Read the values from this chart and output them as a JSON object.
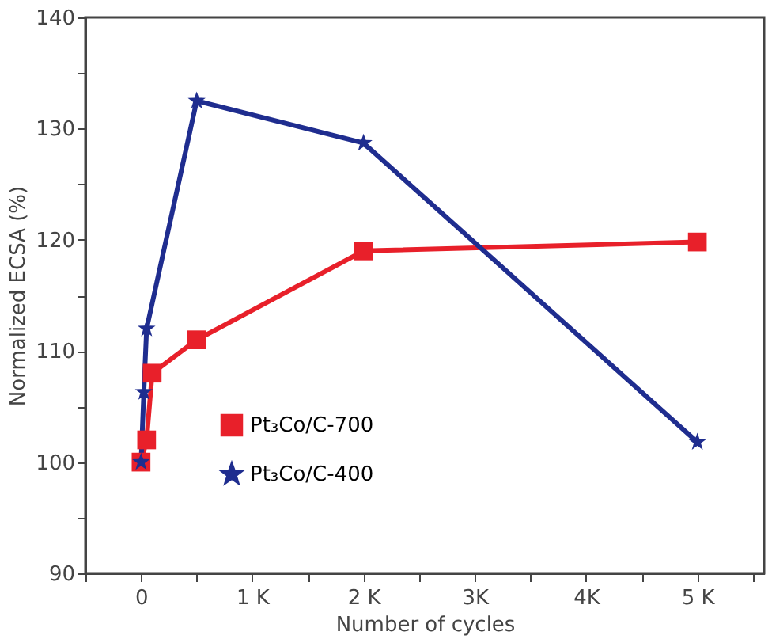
{
  "chart_data": {
    "type": "line",
    "xlabel": "Number of cycles",
    "ylabel": "Normalized ECSA (%)",
    "xlim": [
      -500,
      5600
    ],
    "ylim": [
      90,
      140
    ],
    "xticks": [
      {
        "value": -500,
        "label": null
      },
      {
        "value": 0,
        "label": "0"
      },
      {
        "value": 500,
        "label": null
      },
      {
        "value": 1000,
        "label": "1 K"
      },
      {
        "value": 1500,
        "label": null
      },
      {
        "value": 2000,
        "label": "2 K"
      },
      {
        "value": 2500,
        "label": null
      },
      {
        "value": 3000,
        "label": "3K"
      },
      {
        "value": 3500,
        "label": null
      },
      {
        "value": 4000,
        "label": "4K"
      },
      {
        "value": 4500,
        "label": null
      },
      {
        "value": 5000,
        "label": "5 K"
      },
      {
        "value": 5500,
        "label": null
      }
    ],
    "yticks": [
      90,
      {
        "value": 95,
        "label": null
      },
      100,
      {
        "value": 105,
        "label": null
      },
      110,
      {
        "value": 115,
        "label": null
      },
      120,
      {
        "value": 125,
        "label": null
      },
      130,
      {
        "value": 135,
        "label": null
      },
      140
    ],
    "series": [
      {
        "name": "Pt₃Co/C-700",
        "color": "#e8202a",
        "marker": "square",
        "x": [
          0,
          50,
          100,
          500,
          2000,
          5000
        ],
        "values": [
          100,
          102,
          108,
          111,
          119,
          119.8
        ]
      },
      {
        "name": "Pt₃Co/C-400",
        "color": "#1f2d8f",
        "marker": "star",
        "x": [
          0,
          25,
          50,
          500,
          2000,
          5000
        ],
        "values": [
          100,
          106.3,
          112,
          132.5,
          128.7,
          101.8
        ]
      }
    ],
    "legend": "bottom",
    "grid": false
  }
}
